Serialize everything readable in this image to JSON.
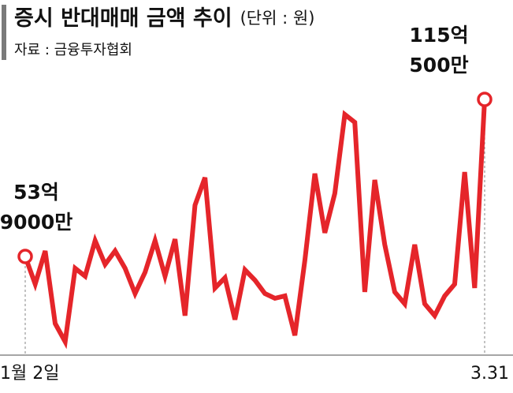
{
  "chart_data": {
    "type": "line",
    "title": "증시 반대매매 금액 추이",
    "unit": "(단위 : 원)",
    "source": "자료 : 금융투자협회",
    "categories": [
      "1월 2일",
      null,
      null,
      null,
      null,
      null,
      null,
      null,
      null,
      null,
      null,
      null,
      null,
      null,
      null,
      null,
      null,
      null,
      null,
      null,
      null,
      null,
      null,
      null,
      null,
      null,
      null,
      null,
      null,
      null,
      null,
      null,
      null,
      null,
      null,
      null,
      null,
      null,
      null,
      null,
      null,
      null,
      null,
      null,
      null,
      null,
      "3.31"
    ],
    "series": [
      {
        "name": "반대매매 금액",
        "color": "#e5252a",
        "values": [
          5390000000,
          4314000000,
          5605000000,
          2778000000,
          2071000000,
          4929000000,
          4622000000,
          6005000000,
          5083000000,
          5605000000,
          4929000000,
          3946000000,
          4775000000,
          6005000000,
          4622000000,
          6066000000,
          3085000000,
          7387000000,
          8463000000,
          4161000000,
          4560000000,
          2932000000,
          4868000000,
          4468000000,
          3946000000,
          3761000000,
          3853000000,
          2317000000,
          5236000000,
          8617000000,
          6312000000,
          7848000000,
          10921000000,
          10614000000,
          4007000000,
          8371000000,
          5851000000,
          4007000000,
          3546000000,
          5851000000,
          3546000000,
          3085000000,
          3853000000,
          4314000000,
          8678000000,
          4161000000,
          11505000000
        ],
        "value_labels": [
          "53억 9000만",
          null,
          null,
          null,
          null,
          null,
          null,
          null,
          null,
          null,
          null,
          null,
          null,
          null,
          null,
          null,
          null,
          null,
          null,
          null,
          null,
          null,
          null,
          null,
          null,
          null,
          null,
          null,
          null,
          null,
          null,
          null,
          null,
          null,
          null,
          null,
          null,
          null,
          null,
          null,
          null,
          null,
          null,
          null,
          null,
          null,
          "115억 500만"
        ]
      }
    ]
  }
}
